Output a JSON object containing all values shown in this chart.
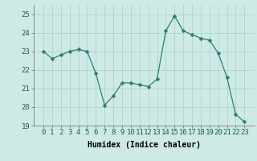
{
  "x": [
    0,
    1,
    2,
    3,
    4,
    5,
    6,
    7,
    8,
    9,
    10,
    11,
    12,
    13,
    14,
    15,
    16,
    17,
    18,
    19,
    20,
    21,
    22,
    23
  ],
  "y": [
    23.0,
    22.6,
    22.8,
    23.0,
    23.1,
    23.0,
    21.8,
    20.1,
    20.6,
    21.3,
    21.3,
    21.2,
    21.1,
    21.5,
    24.1,
    24.9,
    24.1,
    23.9,
    23.7,
    23.6,
    22.9,
    21.6,
    19.6,
    19.2
  ],
  "line_color": "#2e7d6e",
  "marker": "D",
  "marker_size": 2.5,
  "bg_color": "#ceeae7",
  "grid_color": "#aacfcc",
  "xlabel": "Humidex (Indice chaleur)",
  "ylim": [
    19,
    25.5
  ],
  "yticks": [
    19,
    20,
    21,
    22,
    23,
    24,
    25
  ],
  "xticks": [
    0,
    1,
    2,
    3,
    4,
    5,
    6,
    7,
    8,
    9,
    10,
    11,
    12,
    13,
    14,
    15,
    16,
    17,
    18,
    19,
    20,
    21,
    22,
    23
  ],
  "xlabel_fontsize": 7,
  "tick_fontsize": 6.5
}
